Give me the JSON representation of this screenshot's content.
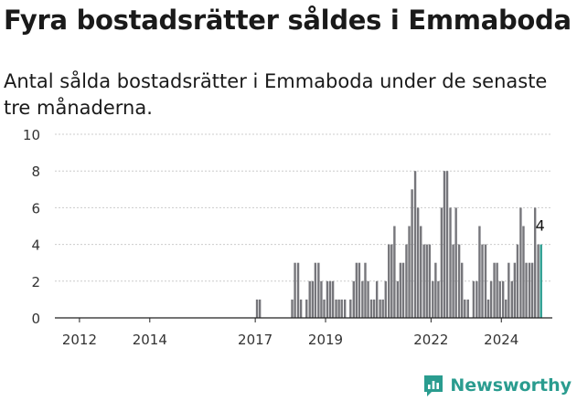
{
  "title": "Fyra bostadsrätter såldes i Emmaboda",
  "subtitle": "Antal sålda bostadsrätter i Emmaboda under de senaste tre månaderna.",
  "brand": "Newsworthy",
  "colors": {
    "bar": "#76767b",
    "highlight": "#2a9c8f",
    "grid": "#cccccc",
    "axis": "#222222"
  },
  "chart_data": {
    "type": "bar",
    "title": "",
    "xlabel": "",
    "ylabel": "",
    "ylim": [
      0,
      10
    ],
    "yticks": [
      0,
      2,
      4,
      6,
      8,
      10
    ],
    "xticks": [
      2012,
      2014,
      2017,
      2019,
      2022,
      2024
    ],
    "grid": true,
    "x_unit": "year (monthly bars)",
    "highlight_label": "4",
    "series": [
      {
        "name": "",
        "bars": [
          {
            "x": 2017.05,
            "value": 1
          },
          {
            "x": 2017.13,
            "value": 1
          },
          {
            "x": 2018.05,
            "value": 1
          },
          {
            "x": 2018.13,
            "value": 3
          },
          {
            "x": 2018.22,
            "value": 3
          },
          {
            "x": 2018.3,
            "value": 1
          },
          {
            "x": 2018.46,
            "value": 1
          },
          {
            "x": 2018.55,
            "value": 2
          },
          {
            "x": 2018.63,
            "value": 2
          },
          {
            "x": 2018.71,
            "value": 3
          },
          {
            "x": 2018.8,
            "value": 3
          },
          {
            "x": 2018.88,
            "value": 2
          },
          {
            "x": 2018.96,
            "value": 1
          },
          {
            "x": 2019.05,
            "value": 2
          },
          {
            "x": 2019.13,
            "value": 2
          },
          {
            "x": 2019.21,
            "value": 2
          },
          {
            "x": 2019.3,
            "value": 1
          },
          {
            "x": 2019.38,
            "value": 1
          },
          {
            "x": 2019.46,
            "value": 1
          },
          {
            "x": 2019.55,
            "value": 1
          },
          {
            "x": 2019.71,
            "value": 1
          },
          {
            "x": 2019.8,
            "value": 2
          },
          {
            "x": 2019.88,
            "value": 3
          },
          {
            "x": 2019.96,
            "value": 3
          },
          {
            "x": 2020.05,
            "value": 2
          },
          {
            "x": 2020.13,
            "value": 3
          },
          {
            "x": 2020.21,
            "value": 2
          },
          {
            "x": 2020.3,
            "value": 1
          },
          {
            "x": 2020.38,
            "value": 1
          },
          {
            "x": 2020.46,
            "value": 2
          },
          {
            "x": 2020.55,
            "value": 1
          },
          {
            "x": 2020.63,
            "value": 1
          },
          {
            "x": 2020.71,
            "value": 2
          },
          {
            "x": 2020.8,
            "value": 4
          },
          {
            "x": 2020.88,
            "value": 4
          },
          {
            "x": 2020.96,
            "value": 5
          },
          {
            "x": 2021.05,
            "value": 2
          },
          {
            "x": 2021.13,
            "value": 3
          },
          {
            "x": 2021.21,
            "value": 3
          },
          {
            "x": 2021.3,
            "value": 4
          },
          {
            "x": 2021.38,
            "value": 5
          },
          {
            "x": 2021.46,
            "value": 7
          },
          {
            "x": 2021.55,
            "value": 8
          },
          {
            "x": 2021.63,
            "value": 6
          },
          {
            "x": 2021.71,
            "value": 5
          },
          {
            "x": 2021.8,
            "value": 4
          },
          {
            "x": 2021.88,
            "value": 4
          },
          {
            "x": 2021.96,
            "value": 4
          },
          {
            "x": 2022.05,
            "value": 2
          },
          {
            "x": 2022.13,
            "value": 3
          },
          {
            "x": 2022.21,
            "value": 2
          },
          {
            "x": 2022.3,
            "value": 6
          },
          {
            "x": 2022.38,
            "value": 8
          },
          {
            "x": 2022.46,
            "value": 8
          },
          {
            "x": 2022.55,
            "value": 6
          },
          {
            "x": 2022.63,
            "value": 4
          },
          {
            "x": 2022.71,
            "value": 6
          },
          {
            "x": 2022.8,
            "value": 4
          },
          {
            "x": 2022.88,
            "value": 3
          },
          {
            "x": 2022.96,
            "value": 1
          },
          {
            "x": 2023.05,
            "value": 1
          },
          {
            "x": 2023.21,
            "value": 2
          },
          {
            "x": 2023.3,
            "value": 2
          },
          {
            "x": 2023.38,
            "value": 5
          },
          {
            "x": 2023.46,
            "value": 4
          },
          {
            "x": 2023.55,
            "value": 4
          },
          {
            "x": 2023.63,
            "value": 1
          },
          {
            "x": 2023.71,
            "value": 2
          },
          {
            "x": 2023.8,
            "value": 3
          },
          {
            "x": 2023.88,
            "value": 3
          },
          {
            "x": 2023.96,
            "value": 2
          },
          {
            "x": 2024.05,
            "value": 2
          },
          {
            "x": 2024.13,
            "value": 1
          },
          {
            "x": 2024.21,
            "value": 3
          },
          {
            "x": 2024.3,
            "value": 2
          },
          {
            "x": 2024.38,
            "value": 3
          },
          {
            "x": 2024.46,
            "value": 4
          },
          {
            "x": 2024.55,
            "value": 6
          },
          {
            "x": 2024.63,
            "value": 5
          },
          {
            "x": 2024.71,
            "value": 3
          },
          {
            "x": 2024.8,
            "value": 3
          },
          {
            "x": 2024.88,
            "value": 3
          },
          {
            "x": 2024.96,
            "value": 6
          },
          {
            "x": 2025.05,
            "value": 4
          },
          {
            "x": 2025.13,
            "value": 4,
            "highlight": true
          }
        ]
      }
    ]
  }
}
